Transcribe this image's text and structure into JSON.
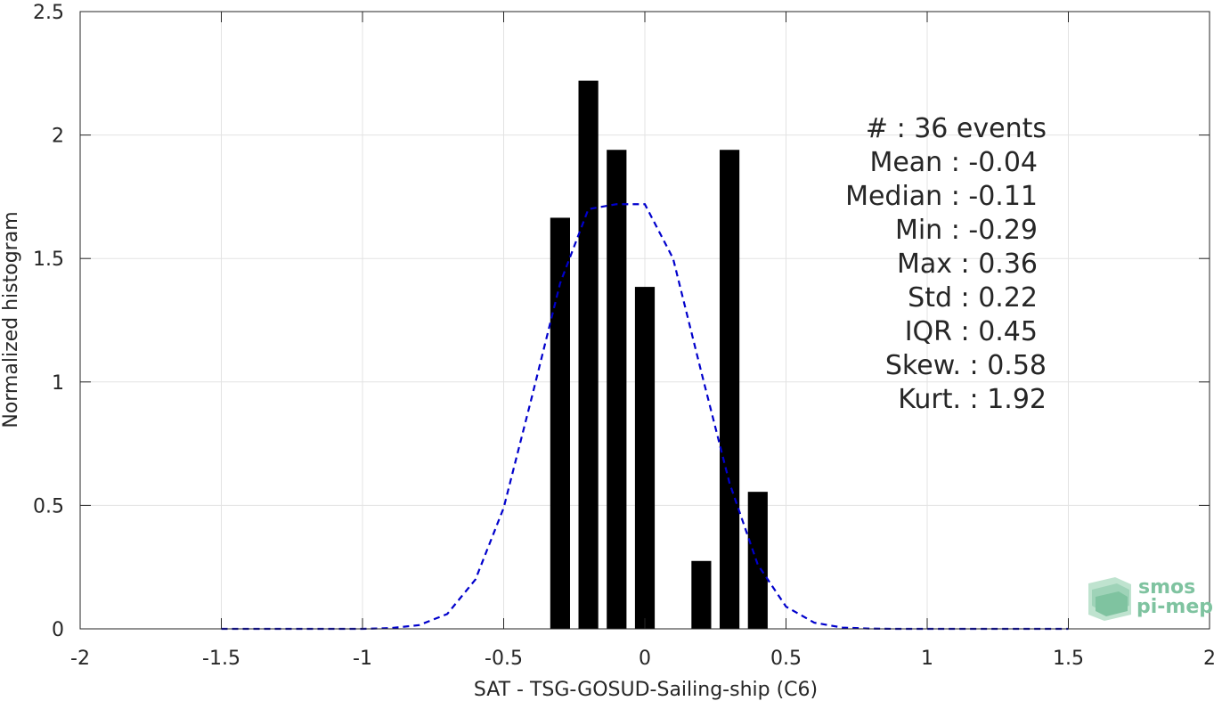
{
  "chart_data": {
    "type": "bar",
    "xlabel": "SAT - TSG-GOSUD-Sailing-ship (C6)",
    "ylabel": "Normalized histogram",
    "xlim": [
      -2,
      2
    ],
    "ylim": [
      0,
      2.5
    ],
    "xticks": [
      -2,
      -1.5,
      -1,
      -0.5,
      0,
      0.5,
      1,
      1.5,
      2
    ],
    "xtick_labels": [
      "-2",
      "-1.5",
      "-1",
      "-0.5",
      "0",
      "0.5",
      "1",
      "1.5",
      "2"
    ],
    "yticks": [
      0,
      0.5,
      1,
      1.5,
      2,
      2.5
    ],
    "ytick_labels": [
      "0",
      "0.5",
      "1",
      "1.5",
      "2",
      "2.5"
    ],
    "grid": true,
    "bar_width": 0.07,
    "bars": {
      "x": [
        -0.3,
        -0.2,
        -0.1,
        0.0,
        0.1,
        0.2,
        0.3,
        0.4
      ],
      "values": [
        1.665,
        2.22,
        1.94,
        1.385,
        0.0,
        0.275,
        1.94,
        0.555
      ],
      "color": "#000000"
    },
    "fit": {
      "style": "dashed",
      "color": "#0000cc",
      "x": [
        -1.5,
        -1.4,
        -1.3,
        -1.2,
        -1.1,
        -1.0,
        -0.9,
        -0.8,
        -0.7,
        -0.6,
        -0.5,
        -0.4,
        -0.3,
        -0.2,
        -0.1,
        0.0,
        0.1,
        0.2,
        0.3,
        0.4,
        0.5,
        0.6,
        0.7,
        0.8,
        0.9,
        1.0,
        1.1,
        1.2,
        1.3,
        1.4,
        1.5
      ],
      "y": [
        0.0,
        0.0,
        0.0,
        0.0,
        0.0,
        0.0,
        0.003,
        0.015,
        0.06,
        0.2,
        0.49,
        0.94,
        1.4,
        1.7,
        1.72,
        1.72,
        1.5,
        1.04,
        0.59,
        0.26,
        0.09,
        0.025,
        0.005,
        0.001,
        0.0,
        0.0,
        0.0,
        0.0,
        0.0,
        0.0,
        0.0
      ]
    },
    "stats": [
      {
        "label": "#  : 36 events",
        "indent": 0
      },
      {
        "label": "Mean : -0.04",
        "indent": 1
      },
      {
        "label": "Median : -0.11",
        "indent": 1
      },
      {
        "label": "Min : -0.29",
        "indent": 1
      },
      {
        "label": "Max : 0.36",
        "indent": 1
      },
      {
        "label": "Std : 0.22",
        "indent": 1
      },
      {
        "label": "IQR : 0.45",
        "indent": 1
      },
      {
        "label": "Skew. : 0.58",
        "indent": 0
      },
      {
        "label": "Kurt. : 1.92",
        "indent": 0
      }
    ]
  },
  "logo": {
    "line1": "smos",
    "line2": "pi-mep",
    "color": "#7fc3a0"
  }
}
